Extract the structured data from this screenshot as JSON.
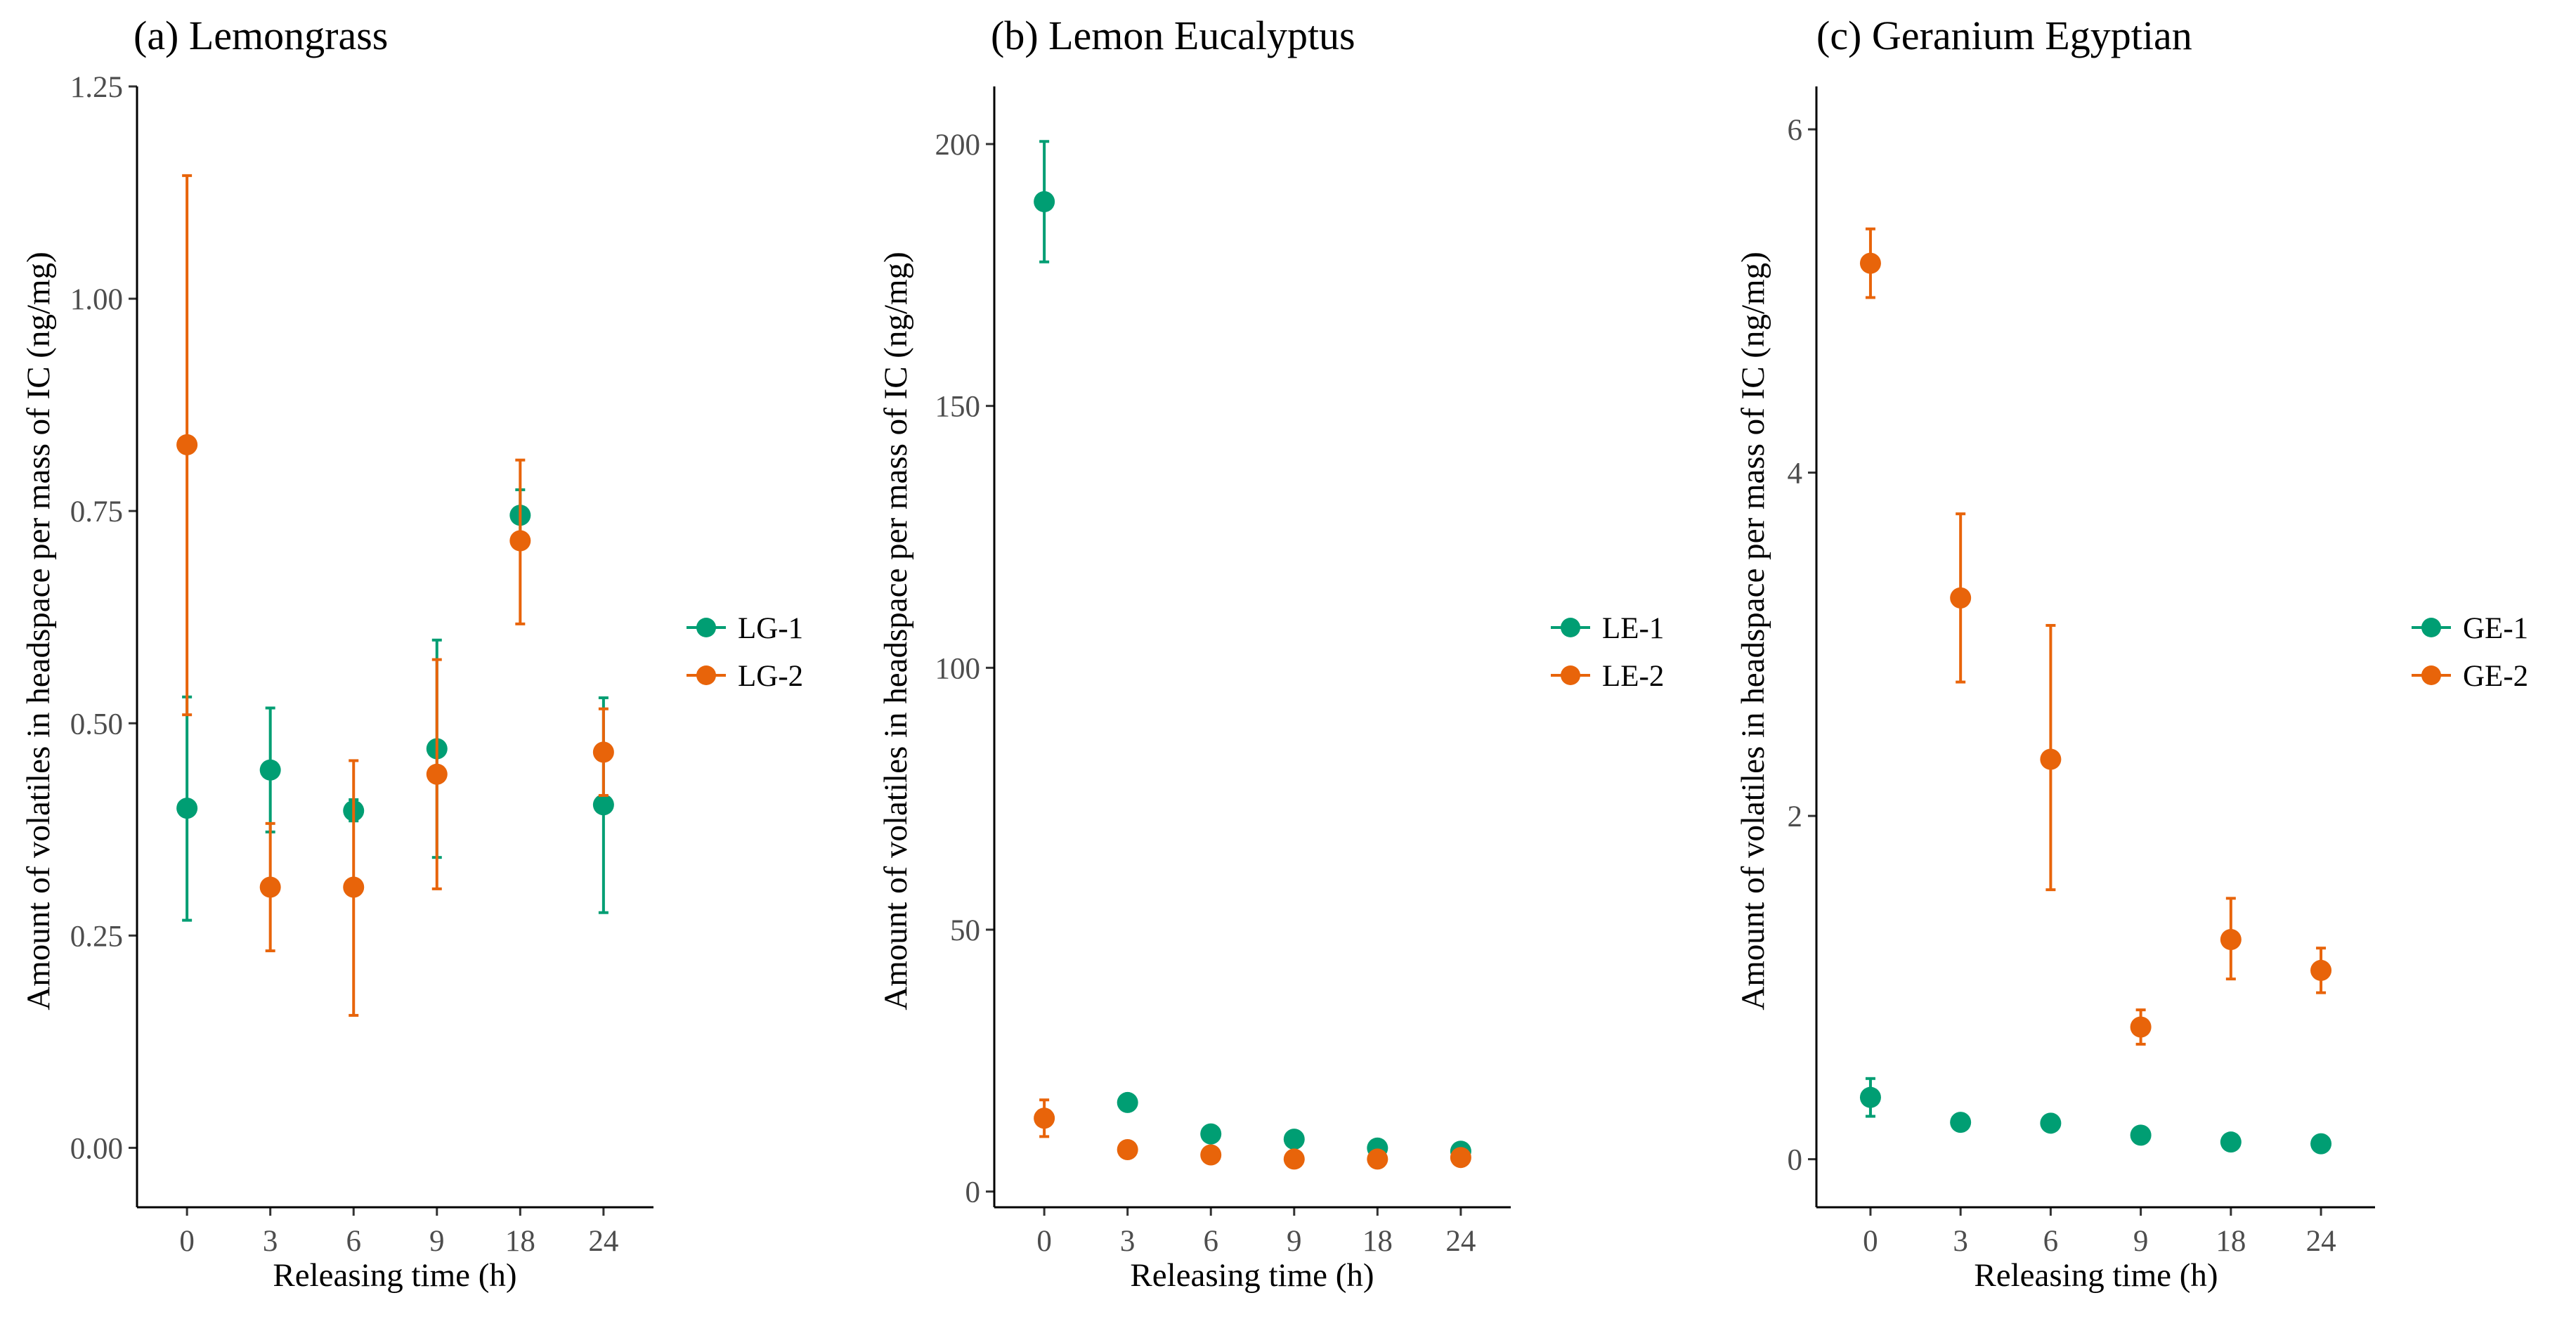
{
  "chart_data": [
    {
      "type": "scatter",
      "panel_title": "(a) Lemongrass",
      "xlabel": "Releasing time (h)",
      "ylabel": "Amount of volatiles in headspace per mass of IC (ng/mg)",
      "categories": [
        "0",
        "3",
        "6",
        "9",
        "18",
        "24"
      ],
      "ylim": [
        -0.07,
        1.25
      ],
      "yticks": [
        0.0,
        0.25,
        0.5,
        0.75,
        1.0,
        1.25
      ],
      "ytick_labels": [
        "0.00",
        "0.25",
        "0.50",
        "0.75",
        "1.00",
        "1.25"
      ],
      "grid": false,
      "legend_position": "right",
      "series": [
        {
          "name": "LG-1",
          "color": "#009E73",
          "values": [
            0.4,
            0.445,
            0.397,
            0.47,
            0.745,
            0.404
          ],
          "err_low": [
            0.268,
            0.372,
            0.385,
            0.342,
            0.715,
            0.277
          ],
          "err_high": [
            0.531,
            0.518,
            0.41,
            0.598,
            0.775,
            0.53
          ]
        },
        {
          "name": "LG-2",
          "color": "#E8640A",
          "values": [
            0.828,
            0.307,
            0.307,
            0.44,
            0.715,
            0.466
          ],
          "err_low": [
            0.51,
            0.232,
            0.156,
            0.305,
            0.617,
            0.415
          ],
          "err_high": [
            1.145,
            0.382,
            0.456,
            0.575,
            0.81,
            0.517
          ]
        }
      ]
    },
    {
      "type": "scatter",
      "panel_title": "(b) Lemon Eucalyptus",
      "xlabel": "Releasing time (h)",
      "ylabel": "Amount of volatiles in headspace per mass of IC (ng/mg)",
      "categories": [
        "0",
        "3",
        "6",
        "9",
        "18",
        "24"
      ],
      "ylim": [
        -3,
        211
      ],
      "yticks": [
        0,
        50,
        100,
        150,
        200
      ],
      "ytick_labels": [
        "0",
        "50",
        "100",
        "150",
        "200"
      ],
      "grid": false,
      "legend_position": "right",
      "series": [
        {
          "name": "LE-1",
          "color": "#009E73",
          "values": [
            189,
            17,
            11,
            10,
            8.3,
            7.7
          ],
          "err_low": [
            177.5,
            17,
            11,
            10,
            8.3,
            7.7
          ],
          "err_high": [
            200.5,
            17,
            11,
            10,
            8.3,
            7.7
          ]
        },
        {
          "name": "LE-2",
          "color": "#E8640A",
          "values": [
            14,
            8,
            7,
            6.2,
            6.2,
            6.5
          ],
          "err_low": [
            10.5,
            8,
            7,
            6.2,
            6.2,
            6.5
          ],
          "err_high": [
            17.5,
            8,
            7,
            6.2,
            6.2,
            6.5
          ]
        }
      ]
    },
    {
      "type": "scatter",
      "panel_title": "(c) Geranium Egyptian",
      "xlabel": "Releasing time (h)",
      "ylabel": "Amount of volatiles in headspace per mass of IC (ng/mg)",
      "categories": [
        "0",
        "3",
        "6",
        "9",
        "18",
        "24"
      ],
      "ylim": [
        -0.28,
        6.25
      ],
      "yticks": [
        0,
        2,
        4,
        6
      ],
      "ytick_labels": [
        "0",
        "2",
        "4",
        "6"
      ],
      "grid": false,
      "legend_position": "right",
      "series": [
        {
          "name": "GE-1",
          "color": "#009E73",
          "values": [
            0.36,
            0.215,
            0.21,
            0.14,
            0.1,
            0.09
          ],
          "err_low": [
            0.25,
            0.215,
            0.21,
            0.14,
            0.1,
            0.09
          ],
          "err_high": [
            0.47,
            0.215,
            0.21,
            0.14,
            0.1,
            0.09
          ]
        },
        {
          "name": "GE-2",
          "color": "#E8640A",
          "values": [
            5.22,
            3.27,
            2.33,
            0.77,
            1.28,
            1.1
          ],
          "err_low": [
            5.02,
            2.78,
            1.57,
            0.67,
            1.05,
            0.97
          ],
          "err_high": [
            5.42,
            3.76,
            3.11,
            0.87,
            1.52,
            1.23
          ]
        }
      ]
    }
  ]
}
